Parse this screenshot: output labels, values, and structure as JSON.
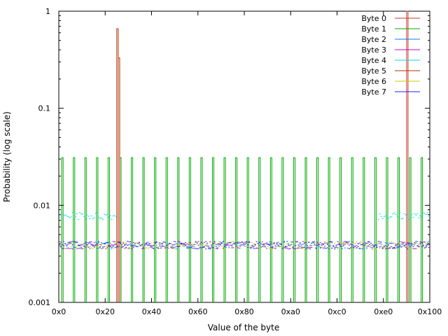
{
  "chart_data": {
    "type": "line",
    "xlabel": "Value of the byte",
    "ylabel": "Probability (log scale)",
    "x_range": [
      0,
      256
    ],
    "y_range": [
      0.001,
      1
    ],
    "y_scale": "log",
    "legend_position": "top-right",
    "x_ticks": [
      {
        "value": 0,
        "label": "0x0"
      },
      {
        "value": 32,
        "label": "0x20"
      },
      {
        "value": 64,
        "label": "0x40"
      },
      {
        "value": 96,
        "label": "0x60"
      },
      {
        "value": 128,
        "label": "0x80"
      },
      {
        "value": 160,
        "label": "0xa0"
      },
      {
        "value": 192,
        "label": "0xc0"
      },
      {
        "value": 224,
        "label": "0xe0"
      },
      {
        "value": 256,
        "label": "0x100"
      }
    ],
    "y_ticks": [
      {
        "value": 1,
        "label": "1"
      },
      {
        "value": 0.1,
        "label": "0.1"
      },
      {
        "value": 0.01,
        "label": "0.01"
      },
      {
        "value": 0.001,
        "label": "0.001"
      }
    ],
    "series": [
      {
        "name": "Byte 0",
        "color": "#c0392b",
        "spikes": [
          {
            "x": 240,
            "y": 1.0
          }
        ]
      },
      {
        "name": "Byte 1",
        "color": "#00aa00",
        "spike_every": 8,
        "spike_start": 2,
        "spike_value": 0.031
      },
      {
        "name": "Byte 2",
        "color": "#0080ff",
        "baseline": 0.0039
      },
      {
        "name": "Byte 3",
        "color": "#cc00cc",
        "baseline": 0.0039
      },
      {
        "name": "Byte 4",
        "color": "#00dddd",
        "baseline": 0.0078,
        "gap_range": [
          40,
          220
        ]
      },
      {
        "name": "Byte 5",
        "color": "#b03000",
        "spikes": [
          {
            "x": 40,
            "y": 0.66
          },
          {
            "x": 41,
            "y": 0.33
          }
        ]
      },
      {
        "name": "Byte 6",
        "color": "#cccc00",
        "baseline": 0.0039
      },
      {
        "name": "Byte 7",
        "color": "#2020ff",
        "baseline": 0.0039
      }
    ]
  }
}
